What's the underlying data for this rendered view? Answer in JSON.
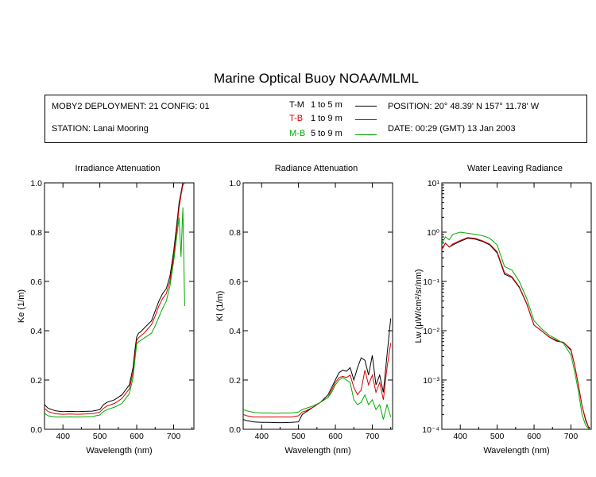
{
  "title": "Marine Optical Buoy NOAA/MLML",
  "info": {
    "deployment": "MOBY2 DEPLOYMENT: 21 CONFIG: 01",
    "station": "STATION: Lanai Mooring",
    "position": "POSITION: 20° 48.39' N   157° 11.78' W",
    "date": "DATE: 00:29 (GMT) 13 Jan 2003"
  },
  "legend": [
    {
      "code": "T-M",
      "range": "1 to 5  m",
      "color": "#000000"
    },
    {
      "code": "T-B",
      "range": "1 to 9  m",
      "color": "#dd0000"
    },
    {
      "code": "M-B",
      "range": "5 to 9  m",
      "color": "#00aa00"
    }
  ],
  "chart_data": [
    {
      "type": "line",
      "title": "Irradiance Attenuation",
      "xlabel": "Wavelength (nm)",
      "ylabel": "Ke  (1/m)",
      "xlim": [
        350,
        755
      ],
      "ylim": [
        0,
        1.0
      ],
      "xticks": [
        400,
        500,
        600,
        700
      ],
      "yticks": [
        0.0,
        0.2,
        0.4,
        0.6,
        0.8,
        1.0
      ],
      "ytick_labels": [
        "0.0",
        "0.2",
        "0.4",
        "0.6",
        "0.8",
        "1.0"
      ],
      "x": [
        350,
        360,
        380,
        400,
        420,
        440,
        460,
        480,
        500,
        510,
        520,
        540,
        560,
        580,
        590,
        595,
        600,
        605,
        610,
        620,
        640,
        650,
        660,
        670,
        680,
        690,
        700,
        710,
        715,
        720,
        725,
        730
      ],
      "series": [
        {
          "name": "T-M",
          "color": "#000000",
          "values": [
            0.1,
            0.085,
            0.075,
            0.072,
            0.073,
            0.072,
            0.073,
            0.074,
            0.08,
            0.1,
            0.11,
            0.12,
            0.14,
            0.18,
            0.25,
            0.32,
            0.375,
            0.39,
            0.395,
            0.41,
            0.44,
            0.48,
            0.52,
            0.55,
            0.57,
            0.62,
            0.72,
            0.85,
            0.92,
            0.96,
            1.0,
            1.0
          ]
        },
        {
          "name": "T-B",
          "color": "#dd0000",
          "values": [
            0.085,
            0.072,
            0.063,
            0.061,
            0.062,
            0.061,
            0.062,
            0.063,
            0.07,
            0.085,
            0.095,
            0.105,
            0.125,
            0.165,
            0.23,
            0.3,
            0.36,
            0.372,
            0.378,
            0.39,
            0.425,
            0.46,
            0.5,
            0.53,
            0.55,
            0.6,
            0.7,
            0.83,
            0.9,
            0.95,
            0.99,
            1.0
          ]
        },
        {
          "name": "M-B",
          "color": "#00aa00",
          "values": [
            0.065,
            0.055,
            0.05,
            0.05,
            0.051,
            0.05,
            0.051,
            0.052,
            0.058,
            0.072,
            0.08,
            0.09,
            0.105,
            0.145,
            0.21,
            0.28,
            0.345,
            0.355,
            0.36,
            0.37,
            0.39,
            0.42,
            0.455,
            0.49,
            0.52,
            0.58,
            0.68,
            0.8,
            0.86,
            0.7,
            0.9,
            0.5
          ]
        }
      ]
    },
    {
      "type": "line",
      "title": "Radiance Attenuation",
      "xlabel": "Wavelength (nm)",
      "ylabel": "Kl  (1/m)",
      "xlim": [
        350,
        755
      ],
      "ylim": [
        0,
        1.0
      ],
      "xticks": [
        400,
        500,
        600,
        700
      ],
      "yticks": [
        0.0,
        0.2,
        0.4,
        0.6,
        0.8,
        1.0
      ],
      "ytick_labels": [
        "0.0",
        "0.2",
        "0.4",
        "0.6",
        "0.8",
        "1.0"
      ],
      "x": [
        350,
        360,
        380,
        400,
        420,
        440,
        460,
        480,
        500,
        510,
        520,
        540,
        560,
        580,
        590,
        600,
        610,
        620,
        630,
        640,
        650,
        660,
        670,
        680,
        690,
        700,
        710,
        720,
        730,
        740,
        750
      ],
      "series": [
        {
          "name": "T-M",
          "color": "#000000",
          "values": [
            0.04,
            0.035,
            0.03,
            0.028,
            0.028,
            0.027,
            0.027,
            0.028,
            0.03,
            0.06,
            0.07,
            0.09,
            0.11,
            0.14,
            0.17,
            0.2,
            0.23,
            0.24,
            0.235,
            0.25,
            0.2,
            0.25,
            0.29,
            0.28,
            0.22,
            0.3,
            0.18,
            0.22,
            0.15,
            0.3,
            0.45
          ]
        },
        {
          "name": "T-B",
          "color": "#dd0000",
          "values": [
            0.06,
            0.055,
            0.05,
            0.05,
            0.05,
            0.05,
            0.05,
            0.05,
            0.055,
            0.07,
            0.075,
            0.09,
            0.11,
            0.13,
            0.16,
            0.19,
            0.21,
            0.215,
            0.21,
            0.22,
            0.17,
            0.14,
            0.16,
            0.24,
            0.18,
            0.22,
            0.15,
            0.19,
            0.12,
            0.25,
            0.35
          ]
        },
        {
          "name": "M-B",
          "color": "#00aa00",
          "values": [
            0.08,
            0.075,
            0.068,
            0.066,
            0.066,
            0.065,
            0.066,
            0.066,
            0.07,
            0.08,
            0.085,
            0.095,
            0.11,
            0.13,
            0.15,
            0.18,
            0.2,
            0.21,
            0.2,
            0.19,
            0.12,
            0.1,
            0.11,
            0.14,
            0.1,
            0.12,
            0.08,
            0.1,
            0.04,
            0.1,
            0.05
          ]
        }
      ]
    },
    {
      "type": "line",
      "title": "Water Leaving Radiance",
      "xlabel": "Wavelength (nm)",
      "ylabel": "Lw  (μW/cm²/sr/nm)",
      "xlim": [
        350,
        755
      ],
      "ylim": [
        0.0001,
        10
      ],
      "yscale": "log",
      "xticks": [
        400,
        500,
        600,
        700
      ],
      "yticks": [
        0.0001,
        0.001,
        0.01,
        0.1,
        1,
        10
      ],
      "ytick_labels": [
        "10⁻⁴",
        "10⁻³",
        "10⁻²",
        "10⁻¹",
        "10⁰",
        "10¹"
      ],
      "x": [
        350,
        360,
        370,
        380,
        400,
        420,
        440,
        460,
        480,
        500,
        520,
        540,
        560,
        580,
        600,
        620,
        640,
        660,
        680,
        700,
        710,
        720,
        730,
        740,
        750
      ],
      "series": [
        {
          "name": "T-M",
          "color": "#000000",
          "values": [
            0.45,
            0.6,
            0.5,
            0.55,
            0.65,
            0.75,
            0.72,
            0.65,
            0.55,
            0.38,
            0.14,
            0.12,
            0.075,
            0.035,
            0.013,
            0.01,
            0.0075,
            0.0062,
            0.0058,
            0.004,
            0.002,
            0.0008,
            0.0003,
            0.00015,
            0.0001
          ]
        },
        {
          "name": "T-B",
          "color": "#dd0000",
          "values": [
            0.45,
            0.6,
            0.5,
            0.58,
            0.68,
            0.78,
            0.75,
            0.67,
            0.57,
            0.4,
            0.15,
            0.125,
            0.078,
            0.036,
            0.013,
            0.01,
            0.0076,
            0.0064,
            0.0058,
            0.0042,
            0.002,
            0.0008,
            0.0003,
            0.00016,
            0.0001
          ]
        },
        {
          "name": "M-B",
          "color": "#00aa00",
          "values": [
            0.6,
            0.8,
            0.7,
            0.9,
            1.0,
            0.95,
            0.9,
            0.85,
            0.75,
            0.55,
            0.2,
            0.17,
            0.1,
            0.045,
            0.016,
            0.011,
            0.0082,
            0.0068,
            0.0055,
            0.0032,
            0.0015,
            0.0006,
            0.0002,
            0.00012,
            0.0001
          ]
        }
      ]
    }
  ]
}
